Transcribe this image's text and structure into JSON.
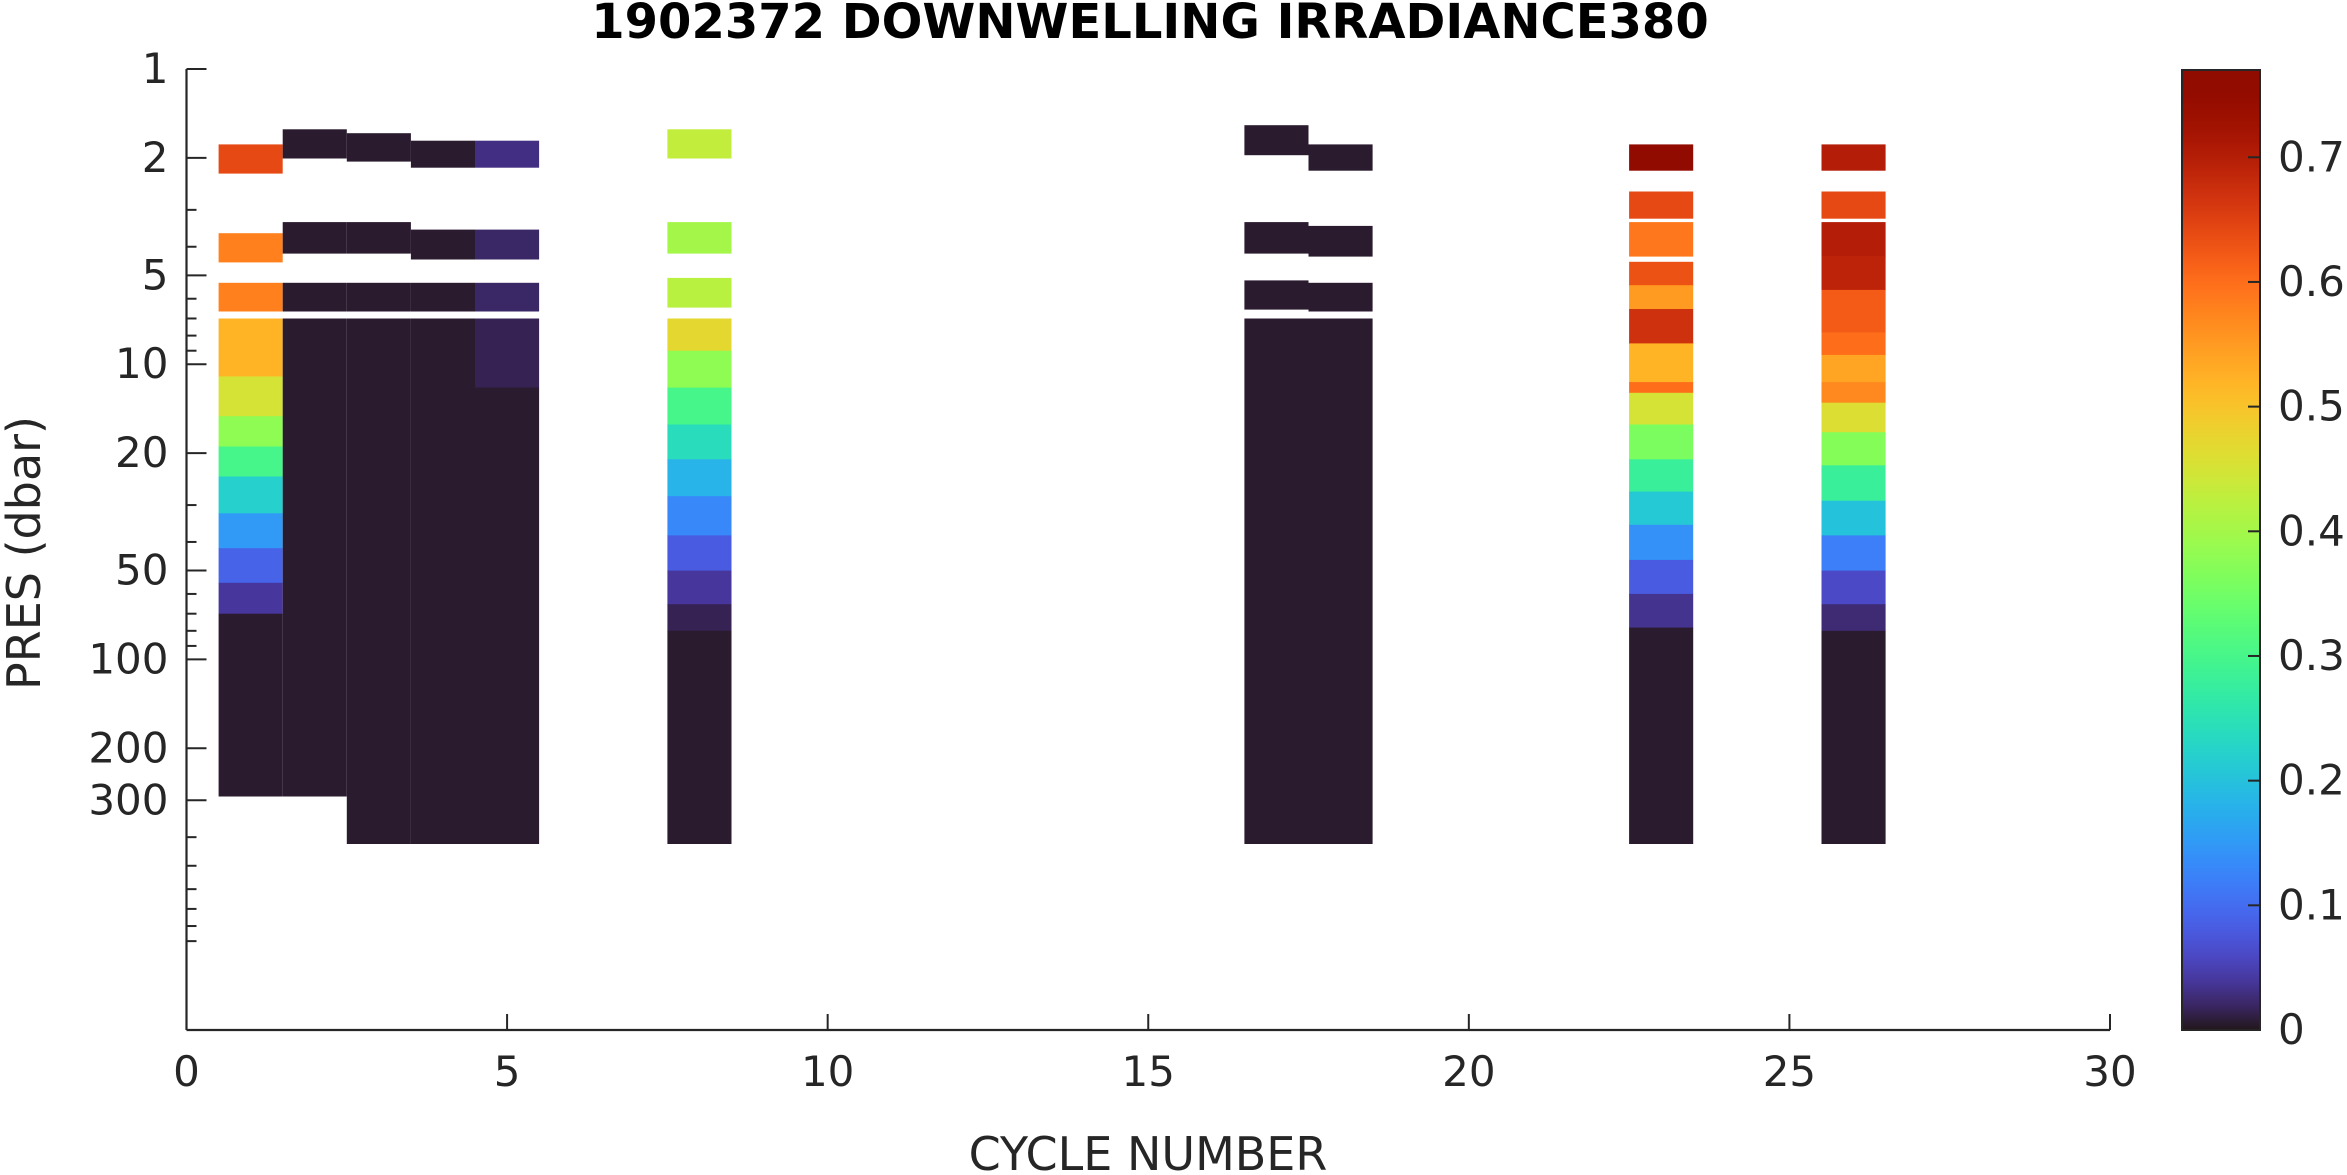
{
  "chart_data": {
    "type": "heatmap",
    "title": "1902372  DOWNWELLING IRRADIANCE380",
    "xlabel": "CYCLE NUMBER",
    "ylabel": "PRES (dbar)",
    "xlim": [
      0,
      30
    ],
    "x_ticks": [
      0,
      5,
      10,
      15,
      20,
      25,
      30
    ],
    "x_tick_labels": [
      "0",
      "5",
      "10",
      "15",
      "20",
      "25",
      "30"
    ],
    "y_scale": "log",
    "y_reversed": true,
    "ylim": [
      1,
      1800
    ],
    "y_ticks": [
      1,
      2,
      5,
      10,
      20,
      50,
      100,
      200,
      300
    ],
    "y_tick_labels": [
      "1",
      "2",
      "5",
      "10",
      "20",
      "50",
      "100",
      "200",
      "300"
    ],
    "colorbar": {
      "colormap": "turbo",
      "range": [
        0,
        0.77
      ],
      "ticks": [
        0,
        0.1,
        0.2,
        0.3,
        0.4,
        0.5,
        0.6,
        0.7
      ],
      "tick_labels": [
        "0",
        "0.1",
        "0.2",
        "0.3",
        "0.4",
        "0.5",
        "0.6",
        "0.7"
      ]
    },
    "profiles": [
      {
        "cycle": 1,
        "samples": [
          {
            "pres": [
              1.8,
              2.25
            ],
            "value": 0.64
          },
          {
            "pres": [
              3.6,
              4.5
            ],
            "value": 0.58
          },
          {
            "pres": [
              5.3,
              6.6
            ],
            "value": 0.58
          },
          {
            "pres": [
              7.0,
              11
            ],
            "value": 0.52
          },
          {
            "pres": [
              11,
              15
            ],
            "value": 0.45
          },
          {
            "pres": [
              15,
              19
            ],
            "value": 0.38
          },
          {
            "pres": [
              19,
              24
            ],
            "value": 0.3
          },
          {
            "pres": [
              24,
              32
            ],
            "value": 0.22
          },
          {
            "pres": [
              32,
              42
            ],
            "value": 0.15
          },
          {
            "pres": [
              42,
              55
            ],
            "value": 0.09
          },
          {
            "pres": [
              55,
              70
            ],
            "value": 0.04
          },
          {
            "pres": [
              70,
              290
            ],
            "value": 0.005
          }
        ]
      },
      {
        "cycle": 2,
        "samples": [
          {
            "pres": [
              1.6,
              2.0
            ],
            "value": 0.005
          },
          {
            "pres": [
              3.3,
              4.2
            ],
            "value": 0.005
          },
          {
            "pres": [
              5.3,
              6.6
            ],
            "value": 0.005
          },
          {
            "pres": [
              7.0,
              290
            ],
            "value": 0.005
          }
        ]
      },
      {
        "cycle": 3,
        "samples": [
          {
            "pres": [
              1.65,
              2.05
            ],
            "value": 0.005
          },
          {
            "pres": [
              3.3,
              4.2
            ],
            "value": 0.005
          },
          {
            "pres": [
              5.3,
              6.6
            ],
            "value": 0.005
          },
          {
            "pres": [
              7.0,
              420
            ],
            "value": 0.005
          }
        ]
      },
      {
        "cycle": 4,
        "samples": [
          {
            "pres": [
              1.75,
              2.15
            ],
            "value": 0.005
          },
          {
            "pres": [
              3.5,
              4.4
            ],
            "value": 0.005
          },
          {
            "pres": [
              5.3,
              6.6
            ],
            "value": 0.005
          },
          {
            "pres": [
              7.0,
              420
            ],
            "value": 0.005
          }
        ]
      },
      {
        "cycle": 5,
        "samples": [
          {
            "pres": [
              1.75,
              2.15
            ],
            "value": 0.03
          },
          {
            "pres": [
              3.5,
              4.4
            ],
            "value": 0.02
          },
          {
            "pres": [
              5.3,
              6.6
            ],
            "value": 0.02
          },
          {
            "pres": [
              7.0,
              12
            ],
            "value": 0.015
          },
          {
            "pres": [
              12,
              420
            ],
            "value": 0.005
          }
        ]
      },
      {
        "cycle": 8,
        "samples": [
          {
            "pres": [
              1.6,
              2.0
            ],
            "value": 0.43
          },
          {
            "pres": [
              3.3,
              4.2
            ],
            "value": 0.4
          },
          {
            "pres": [
              5.1,
              6.4
            ],
            "value": 0.42
          },
          {
            "pres": [
              7.0,
              9.0
            ],
            "value": 0.47
          },
          {
            "pres": [
              9.0,
              12
            ],
            "value": 0.38
          },
          {
            "pres": [
              12,
              16
            ],
            "value": 0.3
          },
          {
            "pres": [
              16,
              21
            ],
            "value": 0.24
          },
          {
            "pres": [
              21,
              28
            ],
            "value": 0.18
          },
          {
            "pres": [
              28,
              38
            ],
            "value": 0.13
          },
          {
            "pres": [
              38,
              50
            ],
            "value": 0.08
          },
          {
            "pres": [
              50,
              65
            ],
            "value": 0.04
          },
          {
            "pres": [
              65,
              80
            ],
            "value": 0.015
          },
          {
            "pres": [
              80,
              420
            ],
            "value": 0.005
          }
        ]
      },
      {
        "cycle": 17,
        "samples": [
          {
            "pres": [
              1.55,
              1.95
            ],
            "value": 0.005
          },
          {
            "pres": [
              3.3,
              4.2
            ],
            "value": 0.005
          },
          {
            "pres": [
              5.2,
              6.5
            ],
            "value": 0.005
          },
          {
            "pres": [
              7.0,
              420
            ],
            "value": 0.005
          }
        ]
      },
      {
        "cycle": 18,
        "samples": [
          {
            "pres": [
              1.8,
              2.2
            ],
            "value": 0.005
          },
          {
            "pres": [
              3.4,
              4.3
            ],
            "value": 0.005
          },
          {
            "pres": [
              5.3,
              6.6
            ],
            "value": 0.005
          },
          {
            "pres": [
              7.0,
              420
            ],
            "value": 0.005
          }
        ]
      },
      {
        "cycle": 23,
        "samples": [
          {
            "pres": [
              1.8,
              2.2
            ],
            "value": 0.76
          },
          {
            "pres": [
              2.6,
              3.2
            ],
            "value": 0.64
          },
          {
            "pres": [
              3.3,
              4.3
            ],
            "value": 0.59
          },
          {
            "pres": [
              4.5,
              5.4
            ],
            "value": 0.63
          },
          {
            "pres": [
              5.4,
              6.5
            ],
            "value": 0.55
          },
          {
            "pres": [
              6.5,
              8.5
            ],
            "value": 0.67
          },
          {
            "pres": [
              8.5,
              11.5
            ],
            "value": 0.52
          },
          {
            "pres": [
              11.5,
              12.5
            ],
            "value": 0.6
          },
          {
            "pres": [
              12.5,
              16
            ],
            "value": 0.45
          },
          {
            "pres": [
              16,
              21
            ],
            "value": 0.36
          },
          {
            "pres": [
              21,
              27
            ],
            "value": 0.28
          },
          {
            "pres": [
              27,
              35
            ],
            "value": 0.21
          },
          {
            "pres": [
              35,
              46
            ],
            "value": 0.14
          },
          {
            "pres": [
              46,
              60
            ],
            "value": 0.08
          },
          {
            "pres": [
              60,
              78
            ],
            "value": 0.035
          },
          {
            "pres": [
              78,
              420
            ],
            "value": 0.005
          }
        ]
      },
      {
        "cycle": 26,
        "samples": [
          {
            "pres": [
              1.8,
              2.2
            ],
            "value": 0.7
          },
          {
            "pres": [
              2.6,
              3.2
            ],
            "value": 0.64
          },
          {
            "pres": [
              3.3,
              4.3
            ],
            "value": 0.7
          },
          {
            "pres": [
              4.3,
              5.6
            ],
            "value": 0.69
          },
          {
            "pres": [
              5.6,
              7.8
            ],
            "value": 0.62
          },
          {
            "pres": [
              7.8,
              9.3
            ],
            "value": 0.6
          },
          {
            "pres": [
              9.3,
              11.5
            ],
            "value": 0.54
          },
          {
            "pres": [
              11.5,
              13.5
            ],
            "value": 0.57
          },
          {
            "pres": [
              13.5,
              17
            ],
            "value": 0.46
          },
          {
            "pres": [
              17,
              22
            ],
            "value": 0.37
          },
          {
            "pres": [
              22,
              29
            ],
            "value": 0.28
          },
          {
            "pres": [
              29,
              38
            ],
            "value": 0.2
          },
          {
            "pres": [
              38,
              50
            ],
            "value": 0.12
          },
          {
            "pres": [
              50,
              65
            ],
            "value": 0.06
          },
          {
            "pres": [
              65,
              80
            ],
            "value": 0.025
          },
          {
            "pres": [
              80,
              420
            ],
            "value": 0.005
          }
        ]
      }
    ]
  }
}
